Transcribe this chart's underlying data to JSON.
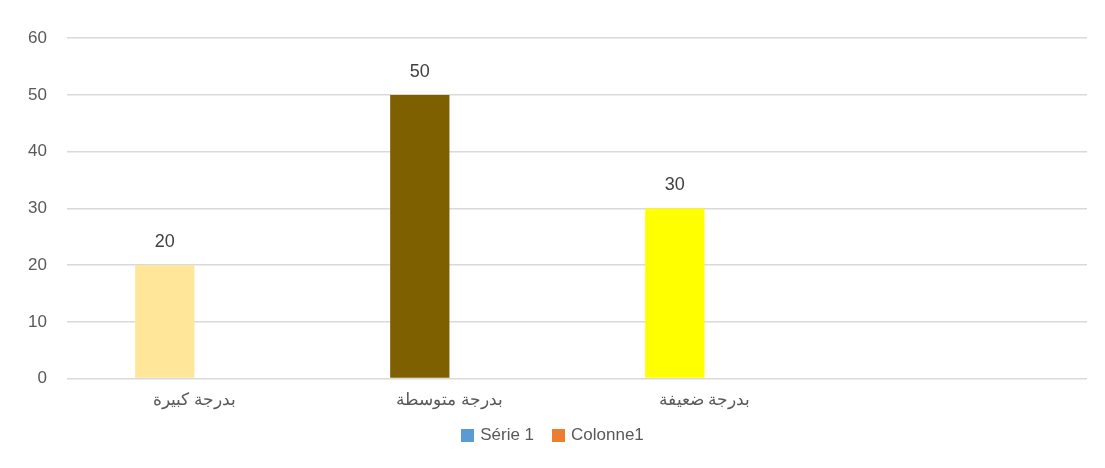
{
  "chart_data": {
    "type": "bar",
    "categories": [
      "بدرجة كبيرة",
      "بدرجة متوسطة",
      "بدرجة ضعيفة",
      null
    ],
    "series": [
      {
        "name": "Série 1",
        "color": "#5b9bd5",
        "colors": [
          "#ffe699",
          "#7f6000",
          "#ffff00",
          null
        ],
        "values": [
          20,
          50,
          30,
          null
        ]
      },
      {
        "name": "Colonne1",
        "color": "#ed7d31",
        "values": [
          null,
          null,
          null,
          null
        ]
      }
    ],
    "ylim": [
      0,
      60
    ],
    "yticks": [
      0,
      10,
      20,
      30,
      40,
      50,
      60
    ],
    "grid": "y",
    "legend": "bottom",
    "data_labels": true
  }
}
